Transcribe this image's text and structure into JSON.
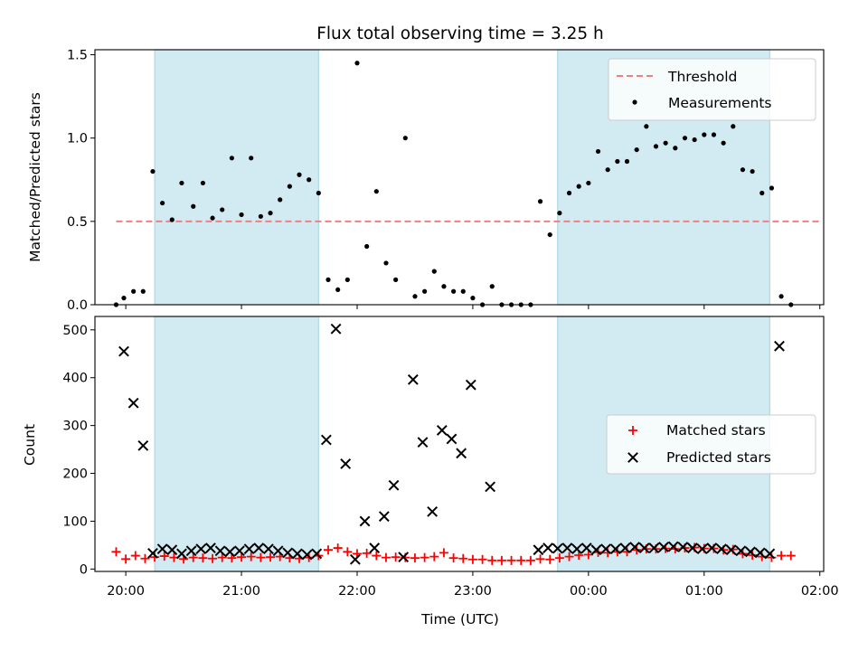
{
  "chart_data": {
    "title": "Flux total observing time = 3.25 h",
    "xlabel": "Time (UTC)",
    "x_unit": "hours UTC",
    "x_ticks": [
      "20:00",
      "21:00",
      "22:00",
      "23:00",
      "00:00",
      "01:00",
      "02:00"
    ],
    "xlim": [
      "19:44",
      "02:02"
    ],
    "shaded_intervals": [
      [
        "20:15",
        "21:40"
      ],
      [
        "23:44",
        "01:34"
      ]
    ],
    "shade_color": "#add8e6",
    "panels": [
      {
        "type": "scatter",
        "ylabel": "Matched/Predicted stars",
        "ylim": [
          0,
          1.53
        ],
        "y_ticks": [
          "0.0",
          "0.5",
          "1.0",
          "1.5"
        ],
        "legend": "top-right",
        "threshold": {
          "name": "Threshold",
          "value": 0.5,
          "x_range": [
            "19:55",
            "02:00"
          ],
          "color": "#f08080"
        },
        "series": [
          {
            "name": "Measurements",
            "marker": "dot",
            "color": "#000000",
            "points": [
              [
                "19:55",
                0.0
              ],
              [
                "19:59",
                0.04
              ],
              [
                "20:04",
                0.08
              ],
              [
                "20:09",
                0.08
              ],
              [
                "20:14",
                0.8
              ],
              [
                "20:19",
                0.61
              ],
              [
                "20:24",
                0.51
              ],
              [
                "20:29",
                0.73
              ],
              [
                "20:35",
                0.59
              ],
              [
                "20:40",
                0.73
              ],
              [
                "20:45",
                0.52
              ],
              [
                "20:50",
                0.57
              ],
              [
                "20:55",
                0.88
              ],
              [
                "21:00",
                0.54
              ],
              [
                "21:05",
                0.88
              ],
              [
                "21:10",
                0.53
              ],
              [
                "21:15",
                0.55
              ],
              [
                "21:20",
                0.63
              ],
              [
                "21:25",
                0.71
              ],
              [
                "21:30",
                0.78
              ],
              [
                "21:35",
                0.75
              ],
              [
                "21:40",
                0.67
              ],
              [
                "21:45",
                0.15
              ],
              [
                "21:50",
                0.09
              ],
              [
                "21:55",
                0.15
              ],
              [
                "22:00",
                1.45
              ],
              [
                "22:05",
                0.35
              ],
              [
                "22:10",
                0.68
              ],
              [
                "22:15",
                0.25
              ],
              [
                "22:20",
                0.15
              ],
              [
                "22:25",
                1.0
              ],
              [
                "22:30",
                0.05
              ],
              [
                "22:35",
                0.08
              ],
              [
                "22:40",
                0.2
              ],
              [
                "22:45",
                0.11
              ],
              [
                "22:50",
                0.08
              ],
              [
                "22:55",
                0.08
              ],
              [
                "23:00",
                0.04
              ],
              [
                "23:05",
                0.0
              ],
              [
                "23:10",
                0.11
              ],
              [
                "23:15",
                0.0
              ],
              [
                "23:20",
                0.0
              ],
              [
                "23:25",
                0.0
              ],
              [
                "23:30",
                0.0
              ],
              [
                "23:35",
                0.62
              ],
              [
                "23:40",
                0.42
              ],
              [
                "23:45",
                0.55
              ],
              [
                "23:50",
                0.67
              ],
              [
                "23:55",
                0.71
              ],
              [
                "00:00",
                0.73
              ],
              [
                "00:05",
                0.92
              ],
              [
                "00:10",
                0.81
              ],
              [
                "00:15",
                0.86
              ],
              [
                "00:20",
                0.86
              ],
              [
                "00:25",
                0.93
              ],
              [
                "00:30",
                1.07
              ],
              [
                "00:35",
                0.95
              ],
              [
                "00:40",
                0.97
              ],
              [
                "00:45",
                0.94
              ],
              [
                "00:50",
                1.0
              ],
              [
                "00:55",
                0.99
              ],
              [
                "01:00",
                1.02
              ],
              [
                "01:05",
                1.02
              ],
              [
                "01:10",
                0.97
              ],
              [
                "01:15",
                1.07
              ],
              [
                "01:20",
                0.81
              ],
              [
                "01:25",
                0.8
              ],
              [
                "01:30",
                0.67
              ],
              [
                "01:35",
                0.7
              ],
              [
                "01:40",
                0.05
              ],
              [
                "01:45",
                0.0
              ]
            ]
          }
        ]
      },
      {
        "type": "scatter",
        "ylabel": "Count",
        "ylim": [
          -5,
          528
        ],
        "y_ticks": [
          "0",
          "100",
          "200",
          "300",
          "400",
          "500"
        ],
        "legend": "center-right",
        "series": [
          {
            "name": "Matched stars",
            "marker": "plus",
            "color": "#ff0000",
            "points": [
              [
                "19:55",
                36
              ],
              [
                "20:00",
                21
              ],
              [
                "20:05",
                28
              ],
              [
                "20:10",
                22
              ],
              [
                "20:15",
                25
              ],
              [
                "20:20",
                27
              ],
              [
                "20:25",
                24
              ],
              [
                "20:30",
                21
              ],
              [
                "20:35",
                24
              ],
              [
                "20:40",
                23
              ],
              [
                "20:45",
                22
              ],
              [
                "20:50",
                24
              ],
              [
                "20:55",
                23
              ],
              [
                "21:00",
                25
              ],
              [
                "21:05",
                26
              ],
              [
                "21:10",
                24
              ],
              [
                "21:15",
                25
              ],
              [
                "21:20",
                26
              ],
              [
                "21:25",
                23
              ],
              [
                "21:30",
                22
              ],
              [
                "21:35",
                24
              ],
              [
                "21:40",
                28
              ],
              [
                "21:45",
                40
              ],
              [
                "21:50",
                44
              ],
              [
                "21:55",
                36
              ],
              [
                "22:00",
                32
              ],
              [
                "22:05",
                33
              ],
              [
                "22:10",
                28
              ],
              [
                "22:15",
                24
              ],
              [
                "22:20",
                25
              ],
              [
                "22:25",
                24
              ],
              [
                "22:30",
                23
              ],
              [
                "22:35",
                24
              ],
              [
                "22:40",
                26
              ],
              [
                "22:45",
                34
              ],
              [
                "22:50",
                23
              ],
              [
                "22:55",
                22
              ],
              [
                "23:00",
                20
              ],
              [
                "23:05",
                20
              ],
              [
                "23:10",
                18
              ],
              [
                "23:15",
                18
              ],
              [
                "23:20",
                18
              ],
              [
                "23:25",
                18
              ],
              [
                "23:30",
                18
              ],
              [
                "23:35",
                21
              ],
              [
                "23:40",
                20
              ],
              [
                "23:45",
                23
              ],
              [
                "23:50",
                26
              ],
              [
                "23:55",
                29
              ],
              [
                "00:00",
                30
              ],
              [
                "00:05",
                35
              ],
              [
                "00:10",
                34
              ],
              [
                "00:15",
                36
              ],
              [
                "00:20",
                36
              ],
              [
                "00:25",
                40
              ],
              [
                "00:30",
                42
              ],
              [
                "00:35",
                42
              ],
              [
                "00:40",
                43
              ],
              [
                "00:45",
                42
              ],
              [
                "00:50",
                44
              ],
              [
                "00:55",
                45
              ],
              [
                "01:00",
                43
              ],
              [
                "01:05",
                43
              ],
              [
                "01:10",
                40
              ],
              [
                "01:15",
                41
              ],
              [
                "01:20",
                32
              ],
              [
                "01:25",
                29
              ],
              [
                "01:30",
                26
              ],
              [
                "01:35",
                24
              ],
              [
                "01:40",
                28
              ],
              [
                "01:45",
                28
              ]
            ]
          },
          {
            "name": "Predicted stars",
            "marker": "x",
            "color": "#000000",
            "points": [
              [
                "19:59",
                455
              ],
              [
                "20:04",
                347
              ],
              [
                "20:09",
                258
              ],
              [
                "20:14",
                33
              ],
              [
                "20:19",
                42
              ],
              [
                "20:24",
                40
              ],
              [
                "20:29",
                32
              ],
              [
                "20:34",
                38
              ],
              [
                "20:39",
                42
              ],
              [
                "20:44",
                44
              ],
              [
                "20:49",
                38
              ],
              [
                "20:54",
                36
              ],
              [
                "20:59",
                38
              ],
              [
                "21:04",
                42
              ],
              [
                "21:09",
                44
              ],
              [
                "21:14",
                42
              ],
              [
                "21:19",
                38
              ],
              [
                "21:24",
                34
              ],
              [
                "21:29",
                32
              ],
              [
                "21:34",
                30
              ],
              [
                "21:39",
                32
              ],
              [
                "21:44",
                270
              ],
              [
                "21:49",
                502
              ],
              [
                "21:54",
                220
              ],
              [
                "21:59",
                20
              ],
              [
                "22:04",
                100
              ],
              [
                "22:09",
                44
              ],
              [
                "22:14",
                110
              ],
              [
                "22:19",
                175
              ],
              [
                "22:24",
                25
              ],
              [
                "22:29",
                396
              ],
              [
                "22:34",
                265
              ],
              [
                "22:39",
                120
              ],
              [
                "22:44",
                290
              ],
              [
                "22:49",
                272
              ],
              [
                "22:54",
                242
              ],
              [
                "22:59",
                385
              ],
              [
                "23:09",
                172
              ],
              [
                "23:34",
                40
              ],
              [
                "23:39",
                44
              ],
              [
                "23:44",
                43
              ],
              [
                "23:49",
                44
              ],
              [
                "23:54",
                42
              ],
              [
                "23:59",
                44
              ],
              [
                "00:04",
                40
              ],
              [
                "00:09",
                42
              ],
              [
                "00:14",
                42
              ],
              [
                "00:19",
                44
              ],
              [
                "00:24",
                46
              ],
              [
                "00:29",
                44
              ],
              [
                "00:34",
                44
              ],
              [
                "00:39",
                46
              ],
              [
                "00:44",
                47
              ],
              [
                "00:49",
                46
              ],
              [
                "00:54",
                44
              ],
              [
                "00:59",
                42
              ],
              [
                "01:04",
                44
              ],
              [
                "01:09",
                42
              ],
              [
                "01:14",
                40
              ],
              [
                "01:19",
                38
              ],
              [
                "01:24",
                36
              ],
              [
                "01:29",
                34
              ],
              [
                "01:34",
                32
              ],
              [
                "01:39",
                466
              ]
            ]
          }
        ]
      }
    ]
  }
}
